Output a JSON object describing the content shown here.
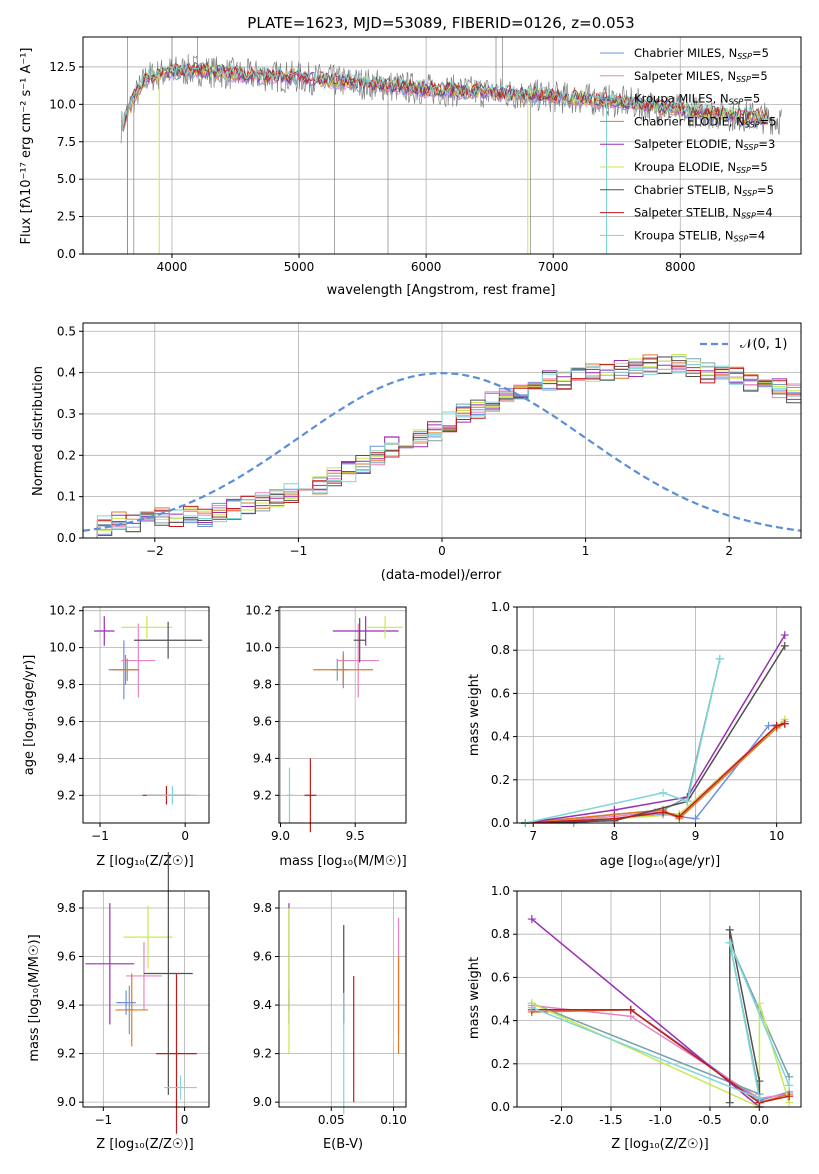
{
  "colors": [
    "#6e8fe0",
    "#e884c4",
    "#7aa0ad",
    "#e07a28",
    "#9a2fb4",
    "#c8e850",
    "#505050",
    "#c01c1c",
    "#7ed6d6"
  ],
  "panels": {
    "spectrum": {
      "title": "PLATE=1623, MJD=53089, FIBERID=0126, z=0.053",
      "xlabel": "wavelength [Angstrom, rest frame]",
      "ylabel": "Flux [fλ10⁻¹⁷ erg cm⁻² s⁻¹ A⁻¹]",
      "xlim": [
        3300,
        8950
      ],
      "ylim": [
        0,
        14.5
      ],
      "xticks": [
        4000,
        5000,
        6000,
        7000,
        8000
      ],
      "yticks": [
        0.0,
        2.5,
        5.0,
        7.5,
        10.0,
        12.5
      ],
      "legend": [
        {
          "label": "Chabrier MILES, N",
          "sub": "SSP",
          "tail": "=5"
        },
        {
          "label": "Salpeter MILES, N",
          "sub": "SSP",
          "tail": "=5"
        },
        {
          "label": "Kroupa MILES, N",
          "sub": "SSP",
          "tail": "=5"
        },
        {
          "label": "Chabrier ELODIE, N",
          "sub": "SSP",
          "tail": "=5"
        },
        {
          "label": "Salpeter ELODIE, N",
          "sub": "SSP",
          "tail": "=3"
        },
        {
          "label": "Kroupa ELODIE, N",
          "sub": "SSP",
          "tail": "=5"
        },
        {
          "label": "Chabrier STELIB, N",
          "sub": "SSP",
          "tail": "=5"
        },
        {
          "label": "Salpeter STELIB, N",
          "sub": "SSP",
          "tail": "=4"
        },
        {
          "label": "Kroupa STELIB, N",
          "sub": "SSP",
          "tail": "=4"
        }
      ]
    },
    "hist": {
      "xlabel": "(data-model)/error",
      "ylabel": "Normed distribution",
      "xlim": [
        -2.5,
        2.5
      ],
      "ylim": [
        0,
        0.52
      ],
      "xticks": [
        -2,
        -1,
        0,
        1,
        2
      ],
      "yticks": [
        0.0,
        0.1,
        0.2,
        0.3,
        0.4,
        0.5
      ],
      "legend": "𝒩(0, 1)"
    },
    "age_z": {
      "xlabel": "Z [log₁₀(Z/Z☉)]",
      "ylabel": "age  [log₁₀(age/yr)]",
      "xlim": [
        -1.2,
        0.28
      ],
      "ylim": [
        9.05,
        10.22
      ],
      "xticks": [
        -1,
        0
      ],
      "yticks": [
        9.2,
        9.4,
        9.6,
        9.8,
        10.0,
        10.2
      ]
    },
    "age_mass": {
      "xlabel": "mass [log₁₀(M/M☉)]",
      "xlim": [
        8.99,
        9.84
      ],
      "ylim": [
        9.05,
        10.22
      ],
      "xticks": [
        9.0,
        9.5
      ],
      "yticks": [
        9.2,
        9.4,
        9.6,
        9.8,
        10.0,
        10.2
      ]
    },
    "mw_age": {
      "xlabel": "age  [log₁₀(age/yr)]",
      "ylabel": "mass weight",
      "xlim": [
        6.8,
        10.3
      ],
      "ylim": [
        0,
        1.0
      ],
      "xticks": [
        7,
        8,
        9,
        10
      ],
      "yticks": [
        0.0,
        0.2,
        0.4,
        0.6,
        0.8,
        1.0
      ]
    },
    "mass_z": {
      "xlabel": "Z [log₁₀(Z/Z☉)]",
      "ylabel": "mass [log₁₀(M/M☉)]",
      "xlim": [
        -1.25,
        0.3
      ],
      "ylim": [
        8.98,
        9.87
      ],
      "xticks": [
        -1,
        0
      ],
      "yticks": [
        9.0,
        9.2,
        9.4,
        9.6,
        9.8
      ]
    },
    "mass_ebv": {
      "xlabel": "E(B-V)",
      "xlim": [
        0.008,
        0.11
      ],
      "ylim": [
        8.98,
        9.87
      ],
      "xticks": [
        0.05,
        0.1
      ],
      "yticks": [
        9.0,
        9.2,
        9.4,
        9.6,
        9.8
      ]
    },
    "mw_z": {
      "xlabel": "Z [log₁₀(Z/Z☉)]",
      "ylabel": "mass weight",
      "xlim": [
        -2.45,
        0.42
      ],
      "ylim": [
        0,
        1.0
      ],
      "xticks": [
        -2.0,
        -1.5,
        -1.0,
        -0.5,
        0.0
      ],
      "yticks": [
        0.0,
        0.2,
        0.4,
        0.6,
        0.8,
        1.0
      ]
    }
  },
  "chart_data": [
    {
      "type": "line",
      "title": "PLATE=1623, MJD=53089, FIBERID=0126, z=0.053",
      "xlabel": "wavelength [Angstrom, rest frame]",
      "ylabel": "Flux [fλ10⁻¹⁷ erg cm⁻² s⁻¹ A⁻¹]",
      "continuum": {
        "x": [
          3600,
          3700,
          3800,
          3900,
          4000,
          4200,
          4500,
          5000,
          5500,
          6000,
          6500,
          7000,
          7500,
          8000,
          8500,
          8800
        ],
        "y": [
          8.5,
          10.4,
          11.8,
          12.0,
          12.2,
          12.3,
          12.0,
          11.8,
          11.4,
          11.0,
          10.8,
          10.5,
          10.2,
          9.6,
          9.2,
          9.0
        ]
      },
      "series_names": [
        "Chabrier MILES",
        "Salpeter MILES",
        "Kroupa MILES",
        "Chabrier ELODIE",
        "Salpeter ELODIE",
        "Kroupa ELODIE",
        "Chabrier STELIB",
        "Salpeter STELIB",
        "Kroupa STELIB"
      ]
    },
    {
      "type": "bar",
      "xlabel": "(data-model)/error",
      "ylabel": "Normed distribution",
      "bin_width": 0.1,
      "bin_start": -2.5,
      "values": [
        0.02,
        0.03,
        0.04,
        0.04,
        0.04,
        0.05,
        0.05,
        0.06,
        0.05,
        0.06,
        0.07,
        0.08,
        0.09,
        0.1,
        0.11,
        0.12,
        0.13,
        0.15,
        0.16,
        0.18,
        0.2,
        0.22,
        0.23,
        0.24,
        0.26,
        0.28,
        0.3,
        0.31,
        0.33,
        0.35,
        0.36,
        0.37,
        0.38,
        0.38,
        0.39,
        0.4,
        0.4,
        0.41,
        0.41,
        0.42,
        0.42,
        0.42,
        0.41,
        0.4,
        0.4,
        0.39,
        0.38,
        0.37,
        0.36,
        0.35,
        0.33,
        0.32,
        0.3,
        0.28,
        0.27,
        0.25,
        0.24,
        0.22,
        0.2,
        0.19,
        0.17,
        0.15,
        0.14,
        0.12,
        0.11,
        0.1,
        0.09,
        0.08,
        0.07,
        0.06,
        0.05,
        0.05,
        0.04,
        0.04,
        0.03,
        0.03,
        0.03,
        0.02,
        0.02,
        0.02
      ],
      "gauss": {
        "mu": 0,
        "sigma": 1
      }
    },
    {
      "type": "scatter",
      "xlabel": "Z [log₁₀(Z/Z☉)]",
      "ylabel": "age  [log₁₀(age/yr)]",
      "points": [
        {
          "x": -0.72,
          "y": 9.88,
          "xerr": 0.18,
          "yerr": 0.16,
          "c": 0
        },
        {
          "x": -0.55,
          "y": 9.93,
          "xerr": 0.2,
          "yerr": 0.2,
          "c": 1
        },
        {
          "x": -0.68,
          "y": 9.88,
          "xerr": 0.05,
          "yerr": 0.06,
          "c": 2
        },
        {
          "x": -0.7,
          "y": 9.88,
          "xerr": 0.15,
          "yerr": 0.08,
          "c": 3
        },
        {
          "x": -0.95,
          "y": 10.09,
          "xerr": 0.12,
          "yerr": 0.08,
          "c": 4
        },
        {
          "x": -0.45,
          "y": 10.11,
          "xerr": 0.3,
          "yerr": 0.06,
          "c": 5
        },
        {
          "x": -0.2,
          "y": 10.04,
          "xerr": 0.4,
          "yerr": 0.1,
          "c": 6
        },
        {
          "x": -0.22,
          "y": 9.2,
          "xerr": 0.28,
          "yerr": 0.05,
          "c": 7
        },
        {
          "x": -0.15,
          "y": 9.2,
          "xerr": 0.3,
          "yerr": 0.05,
          "c": 8
        }
      ]
    },
    {
      "type": "scatter",
      "xlabel": "mass [log₁₀(M/M☉)]",
      "points": [
        {
          "x": 9.42,
          "y": 9.88,
          "xerr": 0.03,
          "yerr": 0.1,
          "c": 0
        },
        {
          "x": 9.52,
          "y": 9.93,
          "xerr": 0.14,
          "yerr": 0.2,
          "c": 1
        },
        {
          "x": 9.38,
          "y": 9.88,
          "xerr": 0.03,
          "yerr": 0.06,
          "c": 2
        },
        {
          "x": 9.42,
          "y": 9.88,
          "xerr": 0.2,
          "yerr": 0.08,
          "c": 3
        },
        {
          "x": 9.57,
          "y": 10.09,
          "xerr": 0.22,
          "yerr": 0.08,
          "c": 4
        },
        {
          "x": 9.7,
          "y": 10.11,
          "xerr": 0.12,
          "yerr": 0.06,
          "c": 5
        },
        {
          "x": 9.53,
          "y": 10.04,
          "xerr": 0.04,
          "yerr": 0.12,
          "c": 6
        },
        {
          "x": 9.2,
          "y": 9.2,
          "xerr": 0.04,
          "yerr": 0.2,
          "c": 7
        },
        {
          "x": 9.06,
          "y": 9.2,
          "xerr": 0.02,
          "yerr": 0.15,
          "c": 8
        }
      ]
    },
    {
      "type": "line",
      "xlabel": "age  [log₁₀(age/yr)]",
      "ylabel": "mass weight",
      "series": [
        {
          "c": 0,
          "x": [
            6.9,
            7.5,
            8.0,
            8.6,
            9.0,
            9.9,
            10.1
          ],
          "y": [
            0.0,
            0.0,
            0.02,
            0.04,
            0.02,
            0.45,
            0.46
          ]
        },
        {
          "c": 1,
          "x": [
            6.9,
            8.0,
            8.5,
            8.8,
            10.0,
            10.1
          ],
          "y": [
            0.0,
            0.03,
            0.05,
            0.04,
            0.45,
            0.47
          ]
        },
        {
          "c": 2,
          "x": [
            6.9,
            8.6,
            8.9,
            9.3
          ],
          "y": [
            0.0,
            0.06,
            0.12,
            0.76
          ]
        },
        {
          "c": 3,
          "x": [
            6.9,
            8.0,
            8.6,
            8.8,
            10.0,
            10.1
          ],
          "y": [
            0.0,
            0.04,
            0.06,
            0.02,
            0.44,
            0.46
          ]
        },
        {
          "c": 4,
          "x": [
            6.9,
            8.0,
            8.9,
            10.1
          ],
          "y": [
            0.0,
            0.06,
            0.12,
            0.87
          ]
        },
        {
          "c": 5,
          "x": [
            6.9,
            8.0,
            8.8,
            10.1
          ],
          "y": [
            0.0,
            0.02,
            0.04,
            0.48
          ]
        },
        {
          "c": 6,
          "x": [
            6.9,
            8.0,
            8.9,
            10.1
          ],
          "y": [
            0.0,
            0.01,
            0.1,
            0.82
          ]
        },
        {
          "c": 7,
          "x": [
            6.9,
            8.0,
            8.6,
            8.8,
            10.0,
            10.1
          ],
          "y": [
            0.0,
            0.02,
            0.05,
            0.03,
            0.45,
            0.46
          ]
        },
        {
          "c": 8,
          "x": [
            6.9,
            8.6,
            8.9,
            9.3
          ],
          "y": [
            0.0,
            0.14,
            0.1,
            0.76
          ]
        }
      ]
    },
    {
      "type": "scatter",
      "xlabel": "Z [log₁₀(Z/Z☉)]",
      "ylabel": "mass [log₁₀(M/M☉)]",
      "points": [
        {
          "x": -0.72,
          "y": 9.41,
          "xerr": 0.12,
          "yerr": 0.05,
          "c": 0
        },
        {
          "x": -0.5,
          "y": 9.52,
          "xerr": 0.22,
          "yerr": 0.14,
          "c": 1
        },
        {
          "x": -0.68,
          "y": 9.38,
          "xerr": 0.05,
          "yerr": 0.1,
          "c": 2
        },
        {
          "x": -0.65,
          "y": 9.38,
          "xerr": 0.2,
          "yerr": 0.15,
          "c": 3
        },
        {
          "x": -0.92,
          "y": 9.57,
          "xerr": 0.3,
          "yerr": 0.25,
          "c": 4
        },
        {
          "x": -0.45,
          "y": 9.68,
          "xerr": 0.3,
          "yerr": 0.13,
          "c": 5
        },
        {
          "x": -0.2,
          "y": 9.53,
          "xerr": 0.3,
          "yerr": 0.5,
          "c": 6
        },
        {
          "x": -0.1,
          "y": 9.2,
          "xerr": 0.25,
          "yerr": 0.33,
          "c": 7
        },
        {
          "x": -0.05,
          "y": 9.06,
          "xerr": 0.2,
          "yerr": 0.05,
          "c": 8
        }
      ]
    },
    {
      "type": "scatter",
      "xlabel": "E(B-V)",
      "points": [
        {
          "x": 0.016,
          "y": 9.42,
          "xerr": 0.0,
          "yerr": 0.04,
          "c": 0
        },
        {
          "x": 0.104,
          "y": 9.52,
          "xerr": 0.0,
          "yerr": 0.24,
          "c": 1
        },
        {
          "x": 0.06,
          "y": 9.38,
          "xerr": 0.0,
          "yerr": 0.06,
          "c": 2
        },
        {
          "x": 0.104,
          "y": 9.4,
          "xerr": 0.0,
          "yerr": 0.2,
          "c": 3
        },
        {
          "x": 0.016,
          "y": 9.57,
          "xerr": 0.0,
          "yerr": 0.25,
          "c": 4
        },
        {
          "x": 0.016,
          "y": 9.5,
          "xerr": 0.0,
          "yerr": 0.3,
          "c": 5
        },
        {
          "x": 0.06,
          "y": 9.53,
          "xerr": 0.0,
          "yerr": 0.2,
          "c": 6
        },
        {
          "x": 0.068,
          "y": 9.26,
          "xerr": 0.0,
          "yerr": 0.26,
          "c": 7
        },
        {
          "x": 0.06,
          "y": 9.2,
          "xerr": 0.0,
          "yerr": 0.25,
          "c": 8
        }
      ]
    },
    {
      "type": "line",
      "xlabel": "Z [log₁₀(Z/Z☉)]",
      "ylabel": "mass weight",
      "series": [
        {
          "c": 0,
          "x": [
            -2.3,
            -1.3,
            0.0,
            0.3
          ],
          "y": [
            0.44,
            0.45,
            0.03,
            0.07
          ]
        },
        {
          "c": 1,
          "x": [
            -2.3,
            -1.3,
            0.0,
            0.3
          ],
          "y": [
            0.47,
            0.42,
            0.04,
            0.06
          ]
        },
        {
          "c": 2,
          "x": [
            -2.3,
            0.0,
            -0.3,
            0.3
          ],
          "y": [
            0.48,
            0.06,
            0.76,
            0.14
          ]
        },
        {
          "c": 3,
          "x": [
            -2.3,
            -1.3,
            0.0,
            0.3
          ],
          "y": [
            0.44,
            0.45,
            0.02,
            0.06
          ]
        },
        {
          "c": 4,
          "x": [
            -2.3,
            0.0
          ],
          "y": [
            0.87,
            0.0
          ]
        },
        {
          "c": 5,
          "x": [
            -2.3,
            0.0,
            0.0,
            0.3
          ],
          "y": [
            0.48,
            0.0,
            0.48,
            0.02
          ]
        },
        {
          "c": 6,
          "x": [
            -0.3,
            -0.3,
            0.0,
            0.0
          ],
          "y": [
            0.02,
            0.82,
            0.12,
            0.0
          ]
        },
        {
          "c": 7,
          "x": [
            -2.3,
            -1.3,
            0.0,
            0.3
          ],
          "y": [
            0.45,
            0.45,
            0.02,
            0.05
          ]
        },
        {
          "c": 8,
          "x": [
            -2.3,
            0.0,
            -0.3,
            0.3
          ],
          "y": [
            0.46,
            0.04,
            0.76,
            0.1
          ]
        }
      ]
    }
  ]
}
